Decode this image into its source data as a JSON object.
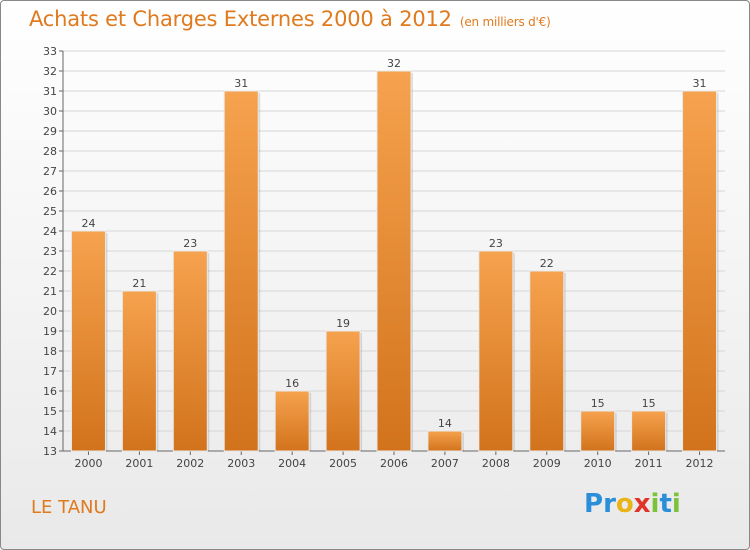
{
  "header": {
    "title": "Achats et Charges Externes 2000 à 2012",
    "unit_note": "(en milliers d'€)"
  },
  "footer": {
    "place": "LE TANU",
    "logo": "Proxiti",
    "logo_letters": [
      {
        "ch": "P",
        "color": "#2a8fd8"
      },
      {
        "ch": "r",
        "color": "#2a8fd8"
      },
      {
        "ch": "o",
        "color": "#e8b417"
      },
      {
        "ch": "x",
        "color": "#e0342a"
      },
      {
        "ch": "i",
        "color": "#7cc23a"
      },
      {
        "ch": "t",
        "color": "#2a8fd8"
      },
      {
        "ch": "i",
        "color": "#7cc23a"
      }
    ]
  },
  "colors": {
    "accent": "#e07a1e",
    "bar_top": "#f6a24e",
    "bar_bottom": "#d2731c",
    "grid": "#d6d6d6"
  },
  "chart_data": {
    "type": "bar",
    "title": "Achats et Charges Externes 2000 à 2012",
    "xlabel": "",
    "ylabel": "",
    "categories": [
      "2000",
      "2001",
      "2002",
      "2003",
      "2004",
      "2005",
      "2006",
      "2007",
      "2008",
      "2009",
      "2010",
      "2011",
      "2012"
    ],
    "values": [
      24,
      21,
      23,
      31,
      16,
      19,
      32,
      14,
      23,
      22,
      15,
      15,
      31
    ],
    "ylim": [
      13,
      33
    ],
    "yticks": [
      13,
      14,
      15,
      16,
      17,
      18,
      19,
      20,
      21,
      22,
      23,
      24,
      25,
      26,
      27,
      28,
      29,
      30,
      31,
      32,
      33
    ],
    "grid": true,
    "data_labels": true
  }
}
